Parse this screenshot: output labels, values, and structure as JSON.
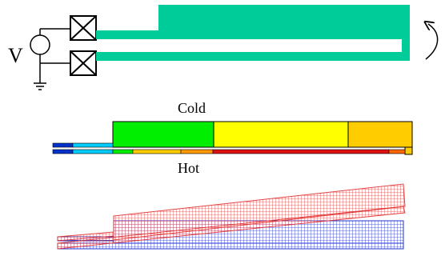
{
  "labels": {
    "voltage": "V",
    "cold": "Cold",
    "hot": "Hot"
  },
  "colors": {
    "actuator_fill": "#00cc99",
    "cold_green": "#00ee00",
    "cold_yellow": "#ffff00",
    "cold_orange": "#ffcc00",
    "hot_orange": "#ff9900",
    "hot_red": "#dd1111",
    "flexure_cyan": "#00ccff",
    "flexure_blue": "#0033cc",
    "mesh_deformed": "#e03030",
    "mesh_undeformed": "#2233cc"
  },
  "icons": [
    "voltage-source-icon",
    "contact-pad-icon",
    "ground-icon",
    "deflection-arrow-icon"
  ]
}
